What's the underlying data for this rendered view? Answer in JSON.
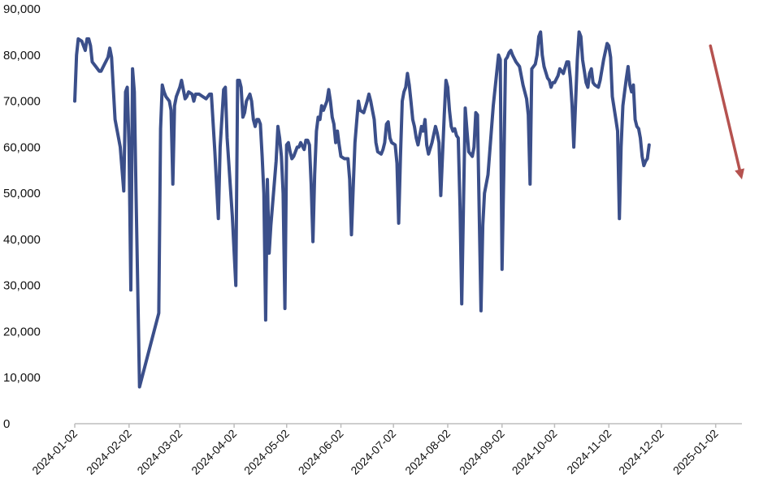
{
  "chart_data": {
    "type": "line",
    "title": "",
    "xlabel": "",
    "ylabel": "",
    "ylim": [
      0,
      90000
    ],
    "y_ticks": [
      0,
      10000,
      20000,
      30000,
      40000,
      50000,
      60000,
      70000,
      80000,
      90000
    ],
    "y_tick_labels": [
      "0",
      "10,000",
      "20,000",
      "30,000",
      "40,000",
      "50,000",
      "60,000",
      "70,000",
      "80,000",
      "90,000"
    ],
    "x_tick_labels": [
      "2024-01-02",
      "2024-02-02",
      "2024-03-02",
      "2024-04-02",
      "2024-05-02",
      "2024-06-02",
      "2024-07-02",
      "2024-08-02",
      "2024-09-02",
      "2024-10-02",
      "2024-11-02",
      "2024-12-02",
      "2025-01-02"
    ],
    "grid": false,
    "legend": "none",
    "line_color": "#3b4f8a",
    "arrow_color": "#b5524f",
    "arrow": {
      "from": [
        "2024-12-30",
        82000
      ],
      "to": [
        "2025-01-17",
        53000
      ]
    },
    "series": [
      {
        "points": [
          [
            "2024-01-02",
            70000
          ],
          [
            "2024-01-03",
            80000
          ],
          [
            "2024-01-04",
            83500
          ],
          [
            "2024-01-06",
            83000
          ],
          [
            "2024-01-08",
            81000
          ],
          [
            "2024-01-09",
            83500
          ],
          [
            "2024-01-10",
            83500
          ],
          [
            "2024-01-11",
            82000
          ],
          [
            "2024-01-12",
            78500
          ],
          [
            "2024-01-14",
            77500
          ],
          [
            "2024-01-16",
            76500
          ],
          [
            "2024-01-17",
            76500
          ],
          [
            "2024-01-19",
            78000
          ],
          [
            "2024-01-21",
            79500
          ],
          [
            "2024-01-22",
            81500
          ],
          [
            "2024-01-23",
            79500
          ],
          [
            "2024-01-25",
            66000
          ],
          [
            "2024-01-27",
            62000
          ],
          [
            "2024-01-28",
            60000
          ],
          [
            "2024-01-30",
            50500
          ],
          [
            "2024-01-31",
            72000
          ],
          [
            "2024-02-01",
            73000
          ],
          [
            "2024-02-02",
            60000
          ],
          [
            "2024-02-03",
            29000
          ],
          [
            "2024-02-04",
            77000
          ],
          [
            "2024-02-05",
            72000
          ],
          [
            "2024-02-06",
            50000
          ],
          [
            "2024-02-08",
            8000
          ],
          [
            "2024-02-19",
            24000
          ],
          [
            "2024-02-20",
            64000
          ],
          [
            "2024-02-21",
            73500
          ],
          [
            "2024-02-22",
            72000
          ],
          [
            "2024-02-23",
            71000
          ],
          [
            "2024-02-25",
            70000
          ],
          [
            "2024-02-26",
            68000
          ],
          [
            "2024-02-27",
            52000
          ],
          [
            "2024-02-28",
            69000
          ],
          [
            "2024-02-29",
            71000
          ],
          [
            "2024-03-02",
            73000
          ],
          [
            "2024-03-03",
            74500
          ],
          [
            "2024-03-05",
            70500
          ],
          [
            "2024-03-06",
            71000
          ],
          [
            "2024-03-07",
            72000
          ],
          [
            "2024-03-09",
            71500
          ],
          [
            "2024-03-10",
            70000
          ],
          [
            "2024-03-11",
            71500
          ],
          [
            "2024-03-13",
            71500
          ],
          [
            "2024-03-15",
            71000
          ],
          [
            "2024-03-17",
            70500
          ],
          [
            "2024-03-19",
            71500
          ],
          [
            "2024-03-20",
            71500
          ],
          [
            "2024-03-22",
            59000
          ],
          [
            "2024-03-24",
            44500
          ],
          [
            "2024-03-25",
            60000
          ],
          [
            "2024-03-27",
            72500
          ],
          [
            "2024-03-28",
            73000
          ],
          [
            "2024-03-29",
            62000
          ],
          [
            "2024-04-01",
            45000
          ],
          [
            "2024-04-03",
            30000
          ],
          [
            "2024-04-04",
            74500
          ],
          [
            "2024-04-05",
            74500
          ],
          [
            "2024-04-06",
            73000
          ],
          [
            "2024-04-07",
            66500
          ],
          [
            "2024-04-08",
            67500
          ],
          [
            "2024-04-09",
            70000
          ],
          [
            "2024-04-11",
            71500
          ],
          [
            "2024-04-12",
            70000
          ],
          [
            "2024-04-13",
            66000
          ],
          [
            "2024-04-14",
            64500
          ],
          [
            "2024-04-15",
            66000
          ],
          [
            "2024-04-16",
            66000
          ],
          [
            "2024-04-17",
            65000
          ],
          [
            "2024-04-18",
            58000
          ],
          [
            "2024-04-19",
            50000
          ],
          [
            "2024-04-20",
            22500
          ],
          [
            "2024-04-21",
            53000
          ],
          [
            "2024-04-22",
            37000
          ],
          [
            "2024-04-23",
            43000
          ],
          [
            "2024-04-26",
            57000
          ],
          [
            "2024-04-27",
            64500
          ],
          [
            "2024-04-28",
            62000
          ],
          [
            "2024-04-29",
            58000
          ],
          [
            "2024-04-30",
            50000
          ],
          [
            "2024-05-01",
            25000
          ],
          [
            "2024-05-02",
            60500
          ],
          [
            "2024-05-03",
            61000
          ],
          [
            "2024-05-04",
            59000
          ],
          [
            "2024-05-05",
            57500
          ],
          [
            "2024-05-06",
            58000
          ],
          [
            "2024-05-08",
            60000
          ],
          [
            "2024-05-09",
            60000
          ],
          [
            "2024-05-10",
            61000
          ],
          [
            "2024-05-12",
            59500
          ],
          [
            "2024-05-13",
            61500
          ],
          [
            "2024-05-14",
            61500
          ],
          [
            "2024-05-15",
            60500
          ],
          [
            "2024-05-16",
            52000
          ],
          [
            "2024-05-17",
            39500
          ],
          [
            "2024-05-18",
            54000
          ],
          [
            "2024-05-19",
            63500
          ],
          [
            "2024-05-20",
            66500
          ],
          [
            "2024-05-21",
            66000
          ],
          [
            "2024-05-22",
            69000
          ],
          [
            "2024-05-23",
            68000
          ],
          [
            "2024-05-25",
            70000
          ],
          [
            "2024-05-26",
            72500
          ],
          [
            "2024-05-27",
            70000
          ],
          [
            "2024-05-28",
            66500
          ],
          [
            "2024-05-29",
            65000
          ],
          [
            "2024-05-30",
            61000
          ],
          [
            "2024-05-31",
            63500
          ],
          [
            "2024-06-01",
            60500
          ],
          [
            "2024-06-02",
            58000
          ],
          [
            "2024-06-04",
            57500
          ],
          [
            "2024-06-06",
            57500
          ],
          [
            "2024-06-07",
            53000
          ],
          [
            "2024-06-08",
            41000
          ],
          [
            "2024-06-09",
            51000
          ],
          [
            "2024-06-10",
            61000
          ],
          [
            "2024-06-11",
            65500
          ],
          [
            "2024-06-12",
            70000
          ],
          [
            "2024-06-13",
            68000
          ],
          [
            "2024-06-15",
            67500
          ],
          [
            "2024-06-17",
            70000
          ],
          [
            "2024-06-18",
            71500
          ],
          [
            "2024-06-19",
            70000
          ],
          [
            "2024-06-20",
            68000
          ],
          [
            "2024-06-21",
            66000
          ],
          [
            "2024-06-22",
            61000
          ],
          [
            "2024-06-23",
            59000
          ],
          [
            "2024-06-25",
            58500
          ],
          [
            "2024-06-26",
            59500
          ],
          [
            "2024-06-27",
            61000
          ],
          [
            "2024-06-28",
            65000
          ],
          [
            "2024-06-29",
            65500
          ],
          [
            "2024-06-30",
            62000
          ],
          [
            "2024-07-01",
            61000
          ],
          [
            "2024-07-03",
            60500
          ],
          [
            "2024-07-04",
            56500
          ],
          [
            "2024-07-05",
            43500
          ],
          [
            "2024-07-06",
            58000
          ],
          [
            "2024-07-07",
            70000
          ],
          [
            "2024-07-08",
            72000
          ],
          [
            "2024-07-09",
            73000
          ],
          [
            "2024-07-10",
            76000
          ],
          [
            "2024-07-11",
            73500
          ],
          [
            "2024-07-12",
            70000
          ],
          [
            "2024-07-13",
            66000
          ],
          [
            "2024-07-14",
            64500
          ],
          [
            "2024-07-15",
            62000
          ],
          [
            "2024-07-16",
            60500
          ],
          [
            "2024-07-17",
            62500
          ],
          [
            "2024-07-18",
            64500
          ],
          [
            "2024-07-19",
            63500
          ],
          [
            "2024-07-20",
            66000
          ],
          [
            "2024-07-21",
            60500
          ],
          [
            "2024-07-22",
            58500
          ],
          [
            "2024-07-24",
            61000
          ],
          [
            "2024-07-26",
            64500
          ],
          [
            "2024-07-27",
            63000
          ],
          [
            "2024-07-28",
            61000
          ],
          [
            "2024-07-29",
            49500
          ],
          [
            "2024-07-30",
            58000
          ],
          [
            "2024-07-31",
            67000
          ],
          [
            "2024-08-01",
            74500
          ],
          [
            "2024-08-02",
            73000
          ],
          [
            "2024-08-03",
            68000
          ],
          [
            "2024-08-04",
            64500
          ],
          [
            "2024-08-05",
            63500
          ],
          [
            "2024-08-06",
            64000
          ],
          [
            "2024-08-07",
            62500
          ],
          [
            "2024-08-08",
            62000
          ],
          [
            "2024-08-09",
            47000
          ],
          [
            "2024-08-10",
            26000
          ],
          [
            "2024-08-11",
            48000
          ],
          [
            "2024-08-12",
            68500
          ],
          [
            "2024-08-13",
            63500
          ],
          [
            "2024-08-14",
            59000
          ],
          [
            "2024-08-15",
            58500
          ],
          [
            "2024-08-16",
            58000
          ],
          [
            "2024-08-17",
            60000
          ],
          [
            "2024-08-18",
            67500
          ],
          [
            "2024-08-19",
            67000
          ],
          [
            "2024-08-20",
            45000
          ],
          [
            "2024-08-21",
            24500
          ],
          [
            "2024-08-22",
            43000
          ],
          [
            "2024-08-23",
            50000
          ],
          [
            "2024-08-25",
            54000
          ],
          [
            "2024-08-28",
            69000
          ],
          [
            "2024-08-31",
            80000
          ],
          [
            "2024-09-01",
            79000
          ],
          [
            "2024-09-02",
            33500
          ],
          [
            "2024-09-03",
            54000
          ],
          [
            "2024-09-04",
            79000
          ],
          [
            "2024-09-05",
            79500
          ],
          [
            "2024-09-06",
            80500
          ],
          [
            "2024-09-07",
            81000
          ],
          [
            "2024-09-08",
            80000
          ],
          [
            "2024-09-10",
            78500
          ],
          [
            "2024-09-12",
            77500
          ],
          [
            "2024-09-14",
            73500
          ],
          [
            "2024-09-16",
            70500
          ],
          [
            "2024-09-17",
            67000
          ],
          [
            "2024-09-18",
            52000
          ],
          [
            "2024-09-19",
            77000
          ],
          [
            "2024-09-21",
            78000
          ],
          [
            "2024-09-22",
            80000
          ],
          [
            "2024-09-23",
            84000
          ],
          [
            "2024-09-24",
            85000
          ],
          [
            "2024-09-25",
            80000
          ],
          [
            "2024-09-26",
            77500
          ],
          [
            "2024-09-28",
            75000
          ],
          [
            "2024-09-29",
            74500
          ],
          [
            "2024-09-30",
            73000
          ],
          [
            "2024-10-01",
            74000
          ],
          [
            "2024-10-02",
            74000
          ],
          [
            "2024-10-04",
            75500
          ],
          [
            "2024-10-05",
            77000
          ],
          [
            "2024-10-07",
            76000
          ],
          [
            "2024-10-09",
            78500
          ],
          [
            "2024-10-10",
            78500
          ],
          [
            "2024-10-11",
            75000
          ],
          [
            "2024-10-12",
            69000
          ],
          [
            "2024-10-13",
            60000
          ],
          [
            "2024-10-15",
            79000
          ],
          [
            "2024-10-16",
            85000
          ],
          [
            "2024-10-17",
            84000
          ],
          [
            "2024-10-18",
            79000
          ],
          [
            "2024-10-19",
            76500
          ],
          [
            "2024-10-20",
            74000
          ],
          [
            "2024-10-21",
            73000
          ],
          [
            "2024-10-22",
            76000
          ],
          [
            "2024-10-23",
            77000
          ],
          [
            "2024-10-24",
            74000
          ],
          [
            "2024-10-25",
            73500
          ],
          [
            "2024-10-27",
            73000
          ],
          [
            "2024-10-28",
            74500
          ],
          [
            "2024-10-30",
            79000
          ],
          [
            "2024-11-01",
            82500
          ],
          [
            "2024-11-02",
            82000
          ],
          [
            "2024-11-03",
            79500
          ],
          [
            "2024-11-04",
            71000
          ],
          [
            "2024-11-06",
            66000
          ],
          [
            "2024-11-07",
            63500
          ],
          [
            "2024-11-08",
            44500
          ],
          [
            "2024-11-09",
            60000
          ],
          [
            "2024-11-10",
            69000
          ],
          [
            "2024-11-11",
            72000
          ],
          [
            "2024-11-12",
            75000
          ],
          [
            "2024-11-13",
            77500
          ],
          [
            "2024-11-14",
            73500
          ],
          [
            "2024-11-15",
            72000
          ],
          [
            "2024-11-16",
            73500
          ],
          [
            "2024-11-17",
            66000
          ],
          [
            "2024-11-18",
            64500
          ],
          [
            "2024-11-19",
            64000
          ],
          [
            "2024-11-20",
            62000
          ],
          [
            "2024-11-21",
            58000
          ],
          [
            "2024-11-22",
            56000
          ],
          [
            "2024-11-23",
            57000
          ],
          [
            "2024-11-24",
            57500
          ],
          [
            "2024-11-25",
            60500
          ]
        ]
      }
    ]
  }
}
